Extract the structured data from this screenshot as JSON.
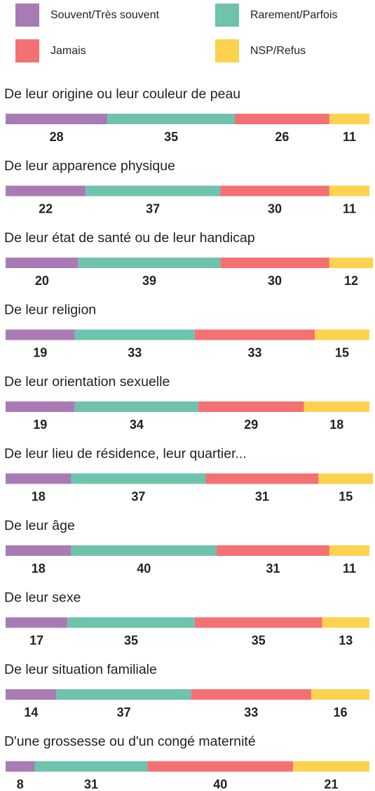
{
  "chart_data": {
    "type": "stacked-bar",
    "orientation": "horizontal",
    "categories": [
      "De leur origine ou leur couleur de peau",
      "De leur apparence physique",
      "De leur état de santé ou de leur handicap",
      "De leur religion",
      "De leur orientation sexuelle",
      "De leur lieu de résidence, leur quartier...",
      "De leur âge",
      "De leur sexe",
      "De leur situation familiale",
      "D'une grossesse ou d'un congé maternité"
    ],
    "series": [
      {
        "name": "Souvent/Très souvent",
        "color": "#a97bb5",
        "values": [
          28,
          22,
          20,
          19,
          19,
          18,
          18,
          17,
          14,
          8
        ]
      },
      {
        "name": "Rarement/Parfois",
        "color": "#6fc3ad",
        "values": [
          35,
          37,
          39,
          33,
          34,
          37,
          40,
          35,
          37,
          31
        ]
      },
      {
        "name": "Jamais",
        "color": "#f47173",
        "values": [
          26,
          30,
          30,
          33,
          29,
          31,
          31,
          35,
          33,
          40
        ]
      },
      {
        "name": "NSP/Refus",
        "color": "#fdd24f",
        "values": [
          11,
          11,
          12,
          15,
          18,
          15,
          11,
          13,
          16,
          21
        ]
      }
    ],
    "xlim": [
      0,
      100
    ],
    "legend": "top"
  }
}
